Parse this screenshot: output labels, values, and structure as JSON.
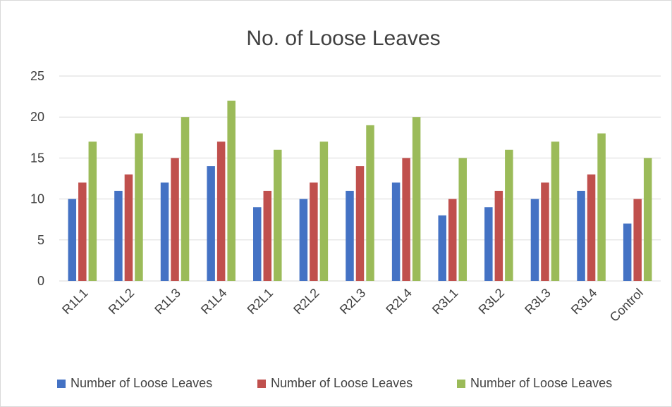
{
  "chart_data": {
    "type": "bar",
    "title": "No. of Loose Leaves",
    "xlabel": "",
    "ylabel": "",
    "ylim": [
      0,
      25
    ],
    "yticks": [
      0,
      5,
      10,
      15,
      20,
      25
    ],
    "grid": true,
    "legend_position": "bottom",
    "categories": [
      "R1L1",
      "R1L2",
      "R1L3",
      "R1L4",
      "R2L1",
      "R2L2",
      "R2L3",
      "R2L4",
      "R3L1",
      "R3L2",
      "R3L3",
      "R3L4",
      "Control"
    ],
    "series": [
      {
        "name": "Number of Loose Leaves",
        "color": "#4472c4",
        "values": [
          10,
          11,
          12,
          14,
          9,
          10,
          11,
          12,
          8,
          9,
          10,
          11,
          7
        ]
      },
      {
        "name": "Number of Loose Leaves",
        "color": "#c0504d",
        "values": [
          12,
          13,
          15,
          17,
          11,
          12,
          14,
          15,
          10,
          11,
          12,
          13,
          10
        ]
      },
      {
        "name": "Number of Loose Leaves",
        "color": "#9bbb59",
        "values": [
          17,
          18,
          20,
          22,
          16,
          17,
          19,
          20,
          15,
          16,
          17,
          18,
          15
        ]
      }
    ]
  }
}
